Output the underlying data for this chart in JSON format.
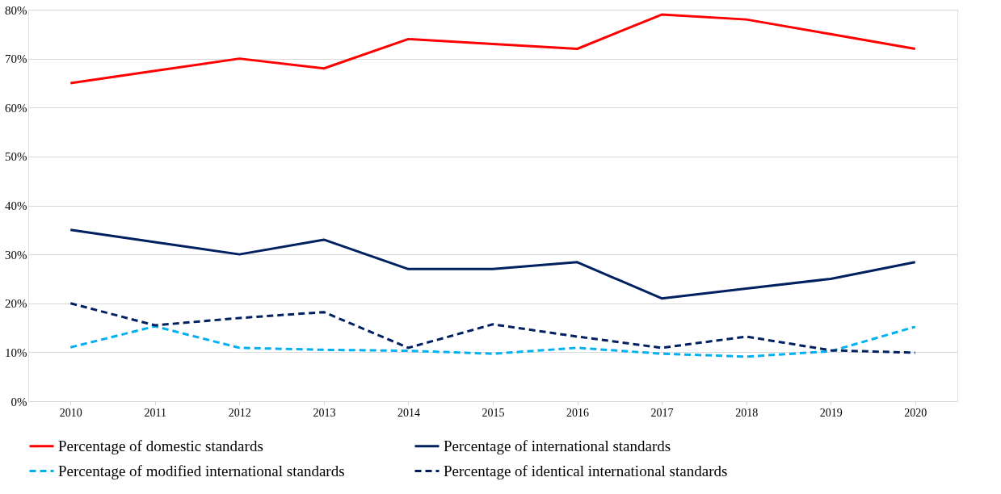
{
  "chart_data": {
    "type": "line",
    "categories": [
      "2010",
      "2011",
      "2012",
      "2013",
      "2014",
      "2015",
      "2016",
      "2017",
      "2018",
      "2019",
      "2020"
    ],
    "series": [
      {
        "name": "Percentage of domestic standards",
        "color": "#ff0000",
        "line_style": "solid",
        "values": [
          65,
          67.5,
          70,
          68,
          74,
          73,
          72,
          79,
          78,
          75,
          72
        ]
      },
      {
        "name": "Percentage of international standards",
        "color": "#002060",
        "line_style": "solid",
        "values": [
          35,
          32.5,
          30,
          33,
          27,
          27,
          28.4,
          21,
          23,
          25,
          28.4
        ]
      },
      {
        "name": "Percentage of modified international standards",
        "color": "#00b0f0",
        "line_style": "dashed",
        "values": [
          11,
          15.3,
          10.9,
          10.5,
          10.3,
          9.7,
          10.9,
          9.7,
          9.1,
          10.2,
          15.2
        ]
      },
      {
        "name": "Percentage of identical international standards",
        "color": "#002060",
        "line_style": "dashed",
        "values": [
          20,
          15.5,
          17,
          18.2,
          10.9,
          15.7,
          13.2,
          10.9,
          13.2,
          10.4,
          9.9
        ]
      }
    ],
    "ylim": [
      0,
      80
    ],
    "yticks": [
      {
        "value": 0,
        "label": "0%"
      },
      {
        "value": 10,
        "label": "10%"
      },
      {
        "value": 20,
        "label": "20%"
      },
      {
        "value": 30,
        "label": "30%"
      },
      {
        "value": 40,
        "label": "40%"
      },
      {
        "value": 50,
        "label": "50%"
      },
      {
        "value": 60,
        "label": "60%"
      },
      {
        "value": 70,
        "label": "70%"
      },
      {
        "value": 80,
        "label": "80%"
      }
    ],
    "grid": "y",
    "legend": "bottom",
    "marker": "none"
  }
}
